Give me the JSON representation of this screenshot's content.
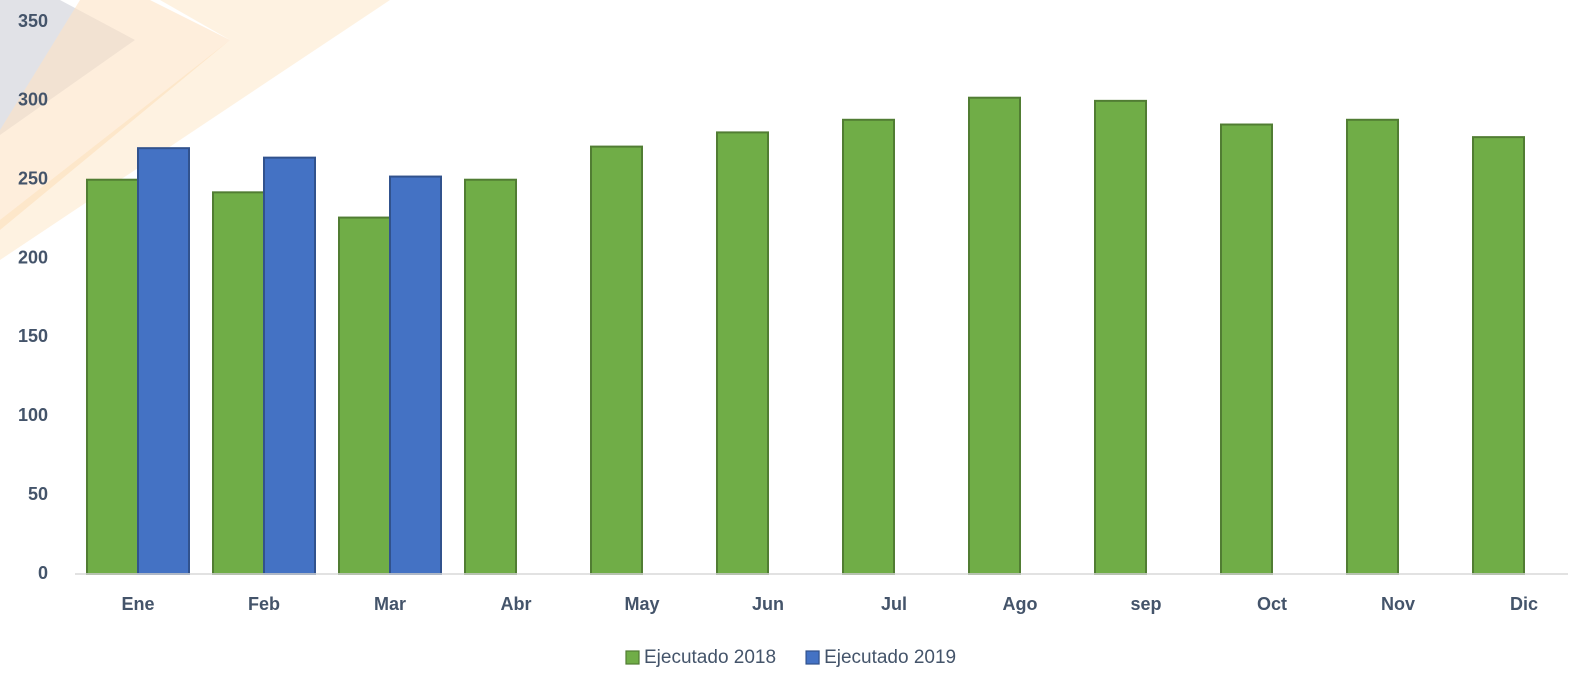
{
  "chart_data": {
    "type": "bar",
    "categories": [
      "Ene",
      "Feb",
      "Mar",
      "Abr",
      "May",
      "Jun",
      "Jul",
      "Ago",
      "sep",
      "Oct",
      "Nov",
      "Dic"
    ],
    "series": [
      {
        "name": "Ejecutado 2018",
        "color": "#70ad47",
        "values": [
          250,
          242,
          226,
          250,
          271,
          280,
          288,
          302,
          300,
          285,
          288,
          277
        ]
      },
      {
        "name": "Ejecutado 2019",
        "color": "#4472c4",
        "values": [
          270,
          264,
          252,
          null,
          null,
          null,
          null,
          null,
          null,
          null,
          null,
          null
        ]
      }
    ],
    "ylim": [
      0,
      350
    ],
    "yticks": [
      0,
      50,
      100,
      150,
      200,
      250,
      300,
      350
    ],
    "grid": false,
    "legend": "bottom"
  }
}
